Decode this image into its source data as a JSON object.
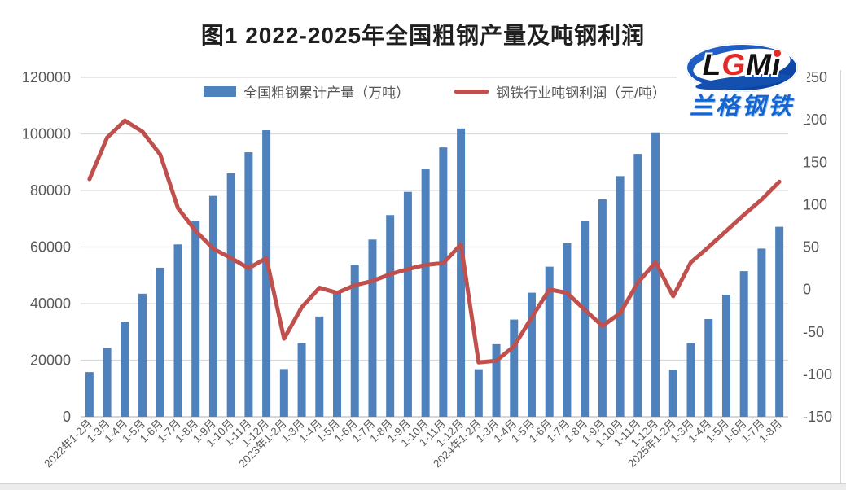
{
  "title": "图1 2022-2025年全国粗钢产量及吨钢利润",
  "logo": {
    "letters": [
      "L",
      "G",
      "M",
      "i"
    ],
    "chinese": "兰格钢铁"
  },
  "colors": {
    "bar": "#4F81BD",
    "line": "#C0504D",
    "grid": "#D9D9D9",
    "axis_line": "#BFBFBF",
    "tick_text": "#595959"
  },
  "chart_data": {
    "type": "bar+line",
    "title": "图1 2022-2025年全国粗钢产量及吨钢利润",
    "grid": true,
    "legend_position": "top",
    "categories": [
      "2022年1-2月",
      "1-3月",
      "1-4月",
      "1-5月",
      "1-6月",
      "1-7月",
      "1-8月",
      "1-9月",
      "1-10月",
      "1-11月",
      "1-12月",
      "2023年1-2月",
      "1-3月",
      "1-4月",
      "1-5月",
      "1-6月",
      "1-7月",
      "1-8月",
      "1-9月",
      "1-10月",
      "1-11月",
      "1-12月",
      "2024年1-2月",
      "1-3月",
      "1-4月",
      "1-5月",
      "1-6月",
      "1-7月",
      "1-8月",
      "1-9月",
      "1-10月",
      "1-11月",
      "1-12月",
      "2025年1-2月",
      "1-3月",
      "1-4月",
      "1-5月",
      "1-6月",
      "1-7月",
      "1-8月"
    ],
    "series": [
      {
        "name": "全国粗钢累计产量（万吨）",
        "type": "bar",
        "axis": "left",
        "color": "#4F81BD",
        "values": [
          15796,
          24338,
          33615,
          43502,
          52688,
          60928,
          69338,
          78083,
          86057,
          93511,
          101300,
          16870,
          26156,
          35439,
          44463,
          53564,
          62651,
          71293,
          79507,
          87470,
          95214,
          101908,
          16796,
          25655,
          34367,
          43861,
          53057,
          61372,
          69141,
          76848,
          85073,
          92919,
          100509,
          16630,
          25933,
          34535,
          43163,
          51483,
          59447,
          67163
        ]
      },
      {
        "name": "钢铁行业吨钢利润（元/吨）",
        "type": "line",
        "axis": "right",
        "color": "#C0504D",
        "values": [
          130,
          179,
          199,
          186,
          159,
          96,
          69,
          48,
          37,
          25,
          37,
          -58,
          -21,
          2,
          -4,
          5,
          10,
          18,
          24,
          29,
          31,
          53,
          -86,
          -84,
          -67,
          -33,
          0,
          -4,
          -24,
          -43,
          -28,
          8,
          32,
          -8,
          32,
          50,
          69,
          88,
          106,
          127
        ]
      }
    ],
    "left_axis": {
      "min": 0,
      "max": 120000,
      "step": 20000,
      "ticks": [
        0,
        20000,
        40000,
        60000,
        80000,
        100000,
        120000
      ]
    },
    "right_axis": {
      "min": -150,
      "max": 250,
      "step": 50,
      "ticks": [
        -150,
        -100,
        -50,
        0,
        50,
        100,
        150,
        200,
        250
      ]
    }
  }
}
